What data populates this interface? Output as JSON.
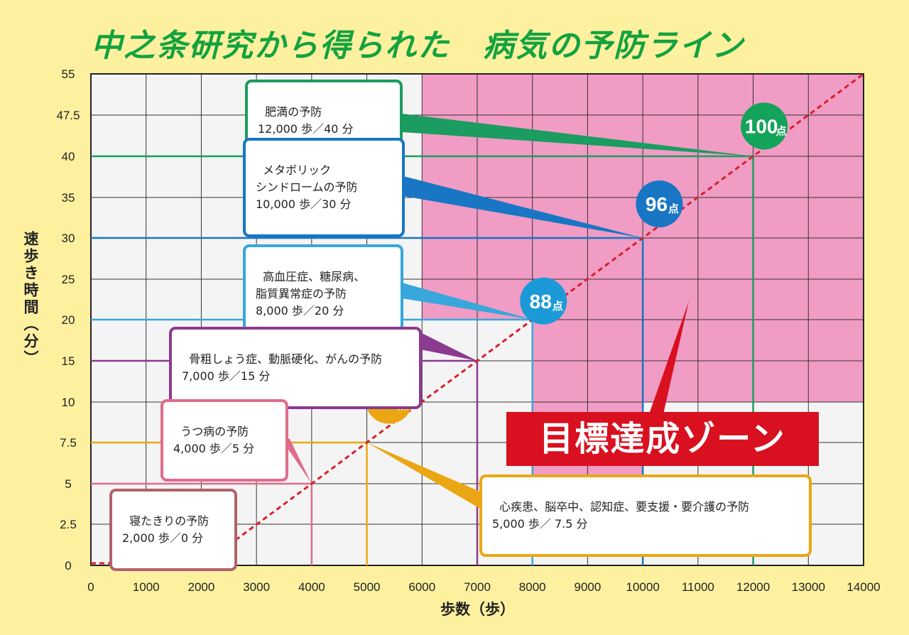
{
  "title": "中之条研究から得られた　病気の予防ライン",
  "chart_data": {
    "type": "line",
    "xlabel": "歩数（歩）",
    "ylabel": "速歩き時間（分）",
    "xlim": [
      0,
      14000
    ],
    "x_ticks": [
      0,
      1000,
      2000,
      3000,
      4000,
      5000,
      6000,
      7000,
      8000,
      9000,
      10000,
      11000,
      12000,
      13000,
      14000
    ],
    "y_ticks": [
      "0",
      "2.5",
      "5",
      "7.5",
      "10",
      "15",
      "20",
      "25",
      "30",
      "35",
      "40",
      "47.5",
      "55"
    ],
    "grid": true,
    "points": [
      {
        "steps": 2000,
        "minutes": 0
      },
      {
        "steps": 4000,
        "minutes": 5
      },
      {
        "steps": 5000,
        "minutes": 7.5
      },
      {
        "steps": 7000,
        "minutes": 15
      },
      {
        "steps": 8000,
        "minutes": 20
      },
      {
        "steps": 10000,
        "minutes": 30
      },
      {
        "steps": 12000,
        "minutes": 40
      }
    ],
    "badges": [
      {
        "label": "68",
        "unit": "点",
        "color": "#eba713"
      },
      {
        "label": "88",
        "unit": "点",
        "color": "#1c9ad8"
      },
      {
        "label": "96",
        "unit": "点",
        "color": "#1876c4"
      },
      {
        "label": "100",
        "unit": "点",
        "color": "#14a35a"
      }
    ],
    "zone_label": "目標達成ゾーン"
  },
  "callouts": [
    {
      "title": "肥満の予防",
      "steps": "12,000 歩／40 分",
      "color": "#1b9c60"
    },
    {
      "title": "メタボリック\nシンドロームの予防",
      "steps": "10,000 歩／30 分",
      "color": "#1876c4"
    },
    {
      "title": "高血圧症、糖尿病、\n脂質異常症の予防",
      "steps": "8,000 歩／20 分",
      "color": "#37a7dc"
    },
    {
      "title": "骨粗しょう症、動脈硬化、がんの予防",
      "steps": "7,000 歩／15 分",
      "color": "#8b3a8f"
    },
    {
      "title": "うつ病の予防",
      "steps": "4,000 歩／5 分",
      "color": "#e06c8c"
    },
    {
      "title": "心疾患、脳卒中、認知症、要支援・要介護の予防",
      "steps": "5,000 歩／ 7.5 分",
      "color": "#eba713"
    },
    {
      "title": "寝たきりの予防",
      "steps": "2,000 歩／0 分",
      "color": "#b0636a"
    }
  ]
}
